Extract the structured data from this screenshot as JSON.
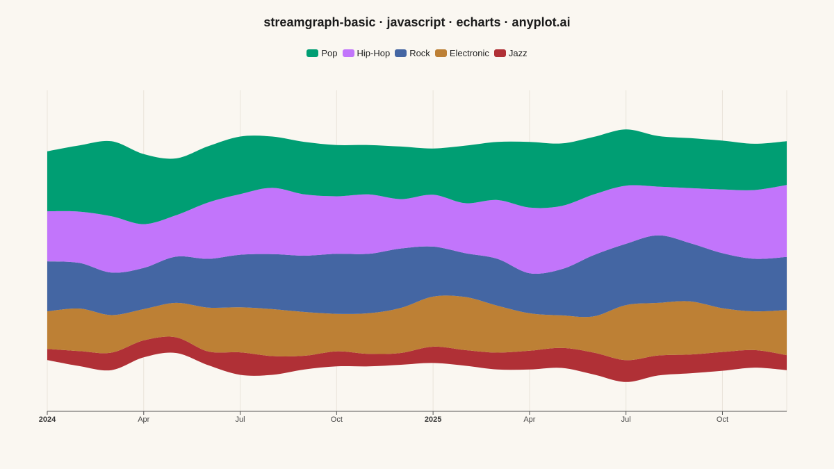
{
  "title": "streamgraph-basic · javascript · echarts · anyplot.ai",
  "chart_data": {
    "type": "area",
    "subtype": "streamgraph",
    "x": [
      "2024-01",
      "2024-02",
      "2024-03",
      "2024-04",
      "2024-05",
      "2024-06",
      "2024-07",
      "2024-08",
      "2024-09",
      "2024-10",
      "2024-11",
      "2024-12",
      "2025-01",
      "2025-02",
      "2025-03",
      "2025-04",
      "2025-05",
      "2025-06",
      "2025-07",
      "2025-08",
      "2025-09",
      "2025-10",
      "2025-11",
      "2025-12"
    ],
    "x_ticks": [
      {
        "label": "2024",
        "bold": true,
        "x": "2024-01"
      },
      {
        "label": "Apr",
        "bold": false,
        "x": "2024-04"
      },
      {
        "label": "Jul",
        "bold": false,
        "x": "2024-07"
      },
      {
        "label": "Oct",
        "bold": false,
        "x": "2024-10"
      },
      {
        "label": "2025",
        "bold": true,
        "x": "2025-01"
      },
      {
        "label": "Apr",
        "bold": false,
        "x": "2025-04"
      },
      {
        "label": "Jul",
        "bold": false,
        "x": "2025-07"
      },
      {
        "label": "Oct",
        "bold": false,
        "x": "2025-10"
      }
    ],
    "series": [
      {
        "name": "Jazz",
        "color": "#B03036",
        "values": [
          18,
          24,
          28,
          27,
          25,
          22,
          36,
          30,
          22,
          24,
          20,
          19,
          26,
          25,
          27,
          30,
          32,
          35,
          35,
          32,
          30,
          30,
          28,
          24
        ]
      },
      {
        "name": "Electronic",
        "color": "#BD8035",
        "values": [
          60,
          68,
          60,
          50,
          55,
          70,
          72,
          75,
          70,
          60,
          65,
          72,
          80,
          85,
          75,
          60,
          52,
          58,
          88,
          84,
          85,
          70,
          62,
          72
        ]
      },
      {
        "name": "Rock",
        "color": "#4466A3",
        "values": [
          80,
          73,
          68,
          66,
          74,
          78,
          84,
          88,
          90,
          96,
          95,
          95,
          80,
          70,
          75,
          64,
          74,
          98,
          98,
          108,
          93,
          88,
          84,
          85
        ]
      },
      {
        "name": "Hip-Hop",
        "color": "#C275FB",
        "values": [
          80,
          82,
          90,
          70,
          66,
          90,
          97,
          106,
          98,
          92,
          95,
          79,
          83,
          80,
          94,
          105,
          101,
          97,
          93,
          78,
          88,
          102,
          110,
          115
        ]
      },
      {
        "name": "Pop",
        "color": "#009E73",
        "values": [
          96,
          106,
          120,
          112,
          91,
          90,
          92,
          82,
          84,
          82,
          79,
          84,
          74,
          92,
          93,
          105,
          100,
          92,
          90,
          81,
          80,
          78,
          74,
          70
        ]
      }
    ],
    "legend_order": [
      "Pop",
      "Hip-Hop",
      "Rock",
      "Electronic",
      "Jazz"
    ],
    "legend_position": "top-center",
    "grid": "faint vertical lines",
    "y_axis_visible": false
  }
}
